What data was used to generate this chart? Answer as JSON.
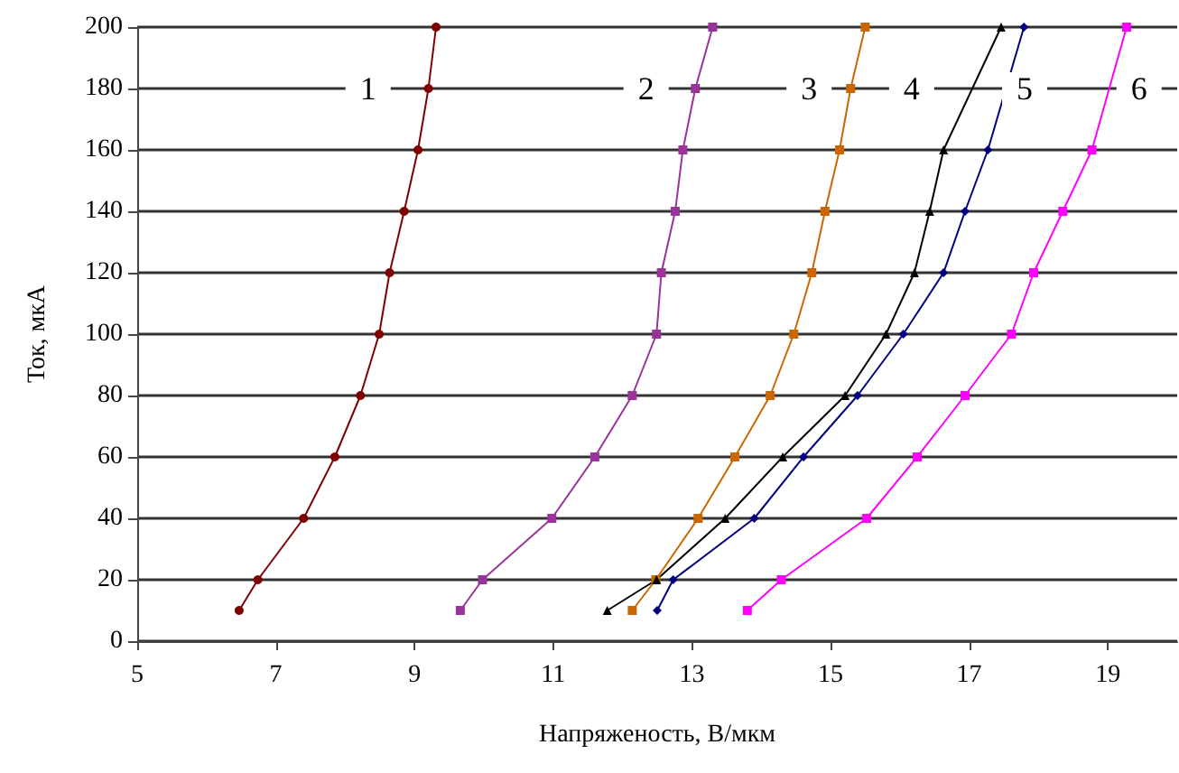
{
  "chart_data": {
    "type": "line",
    "xlabel": "Напряженость, В/мкм",
    "ylabel": "Ток, мкА",
    "xlim": [
      5,
      20
    ],
    "xticks": [
      5,
      7,
      9,
      11,
      13,
      15,
      17,
      19
    ],
    "ylim": [
      0,
      200
    ],
    "yticks": [
      0,
      20,
      40,
      60,
      80,
      100,
      120,
      140,
      160,
      180,
      200
    ],
    "grid": "y",
    "legend": false,
    "line_style": "solid",
    "series": [
      {
        "color": "#800000",
        "marker": "circle",
        "x": [
          6.47,
          6.74,
          7.4,
          7.85,
          8.22,
          8.49,
          8.64,
          8.85,
          9.05,
          9.2,
          9.31
        ],
        "values": [
          10,
          20,
          40,
          60,
          80,
          100,
          120,
          140,
          160,
          180,
          200
        ]
      },
      {
        "color": "#993399",
        "marker": "square",
        "x": [
          9.66,
          9.98,
          10.98,
          11.6,
          12.14,
          12.49,
          12.56,
          12.76,
          12.87,
          13.05,
          13.3
        ],
        "values": [
          10,
          20,
          40,
          60,
          80,
          100,
          120,
          140,
          160,
          180,
          200
        ]
      },
      {
        "color": "#cc6600",
        "marker": "square",
        "x": [
          12.14,
          12.48,
          13.09,
          13.62,
          14.13,
          14.47,
          14.73,
          14.92,
          15.13,
          15.29,
          15.5
        ],
        "values": [
          10,
          20,
          40,
          60,
          80,
          100,
          120,
          140,
          160,
          180,
          200
        ]
      },
      {
        "color": "#000000",
        "marker": "triangle",
        "x": [
          11.78,
          12.49,
          13.48,
          14.31,
          15.21,
          15.8,
          16.21,
          16.43,
          16.63,
          17.46
        ],
        "values": [
          10,
          20,
          40,
          60,
          80,
          100,
          120,
          140,
          160,
          200
        ]
      },
      {
        "color": "#000080",
        "marker": "diamond",
        "x": [
          12.5,
          12.73,
          13.9,
          14.61,
          15.39,
          16.05,
          16.63,
          16.94,
          17.27,
          17.79
        ],
        "values": [
          10,
          20,
          40,
          60,
          80,
          100,
          120,
          140,
          160,
          200
        ]
      },
      {
        "color": "#ff00ff",
        "marker": "square",
        "x": [
          13.8,
          14.29,
          15.52,
          16.25,
          16.94,
          17.61,
          17.93,
          18.35,
          18.77,
          19.27
        ],
        "values": [
          10,
          20,
          40,
          60,
          80,
          100,
          120,
          140,
          160,
          200
        ]
      }
    ],
    "annotations": [
      {
        "text": "1",
        "x": 8.33,
        "y": 180
      },
      {
        "text": "2",
        "x": 12.34,
        "y": 180
      },
      {
        "text": "3",
        "x": 14.69,
        "y": 180
      },
      {
        "text": "4",
        "x": 16.17,
        "y": 180
      },
      {
        "text": "5",
        "x": 17.8,
        "y": 180
      },
      {
        "text": "6",
        "x": 19.45,
        "y": 180
      }
    ]
  }
}
